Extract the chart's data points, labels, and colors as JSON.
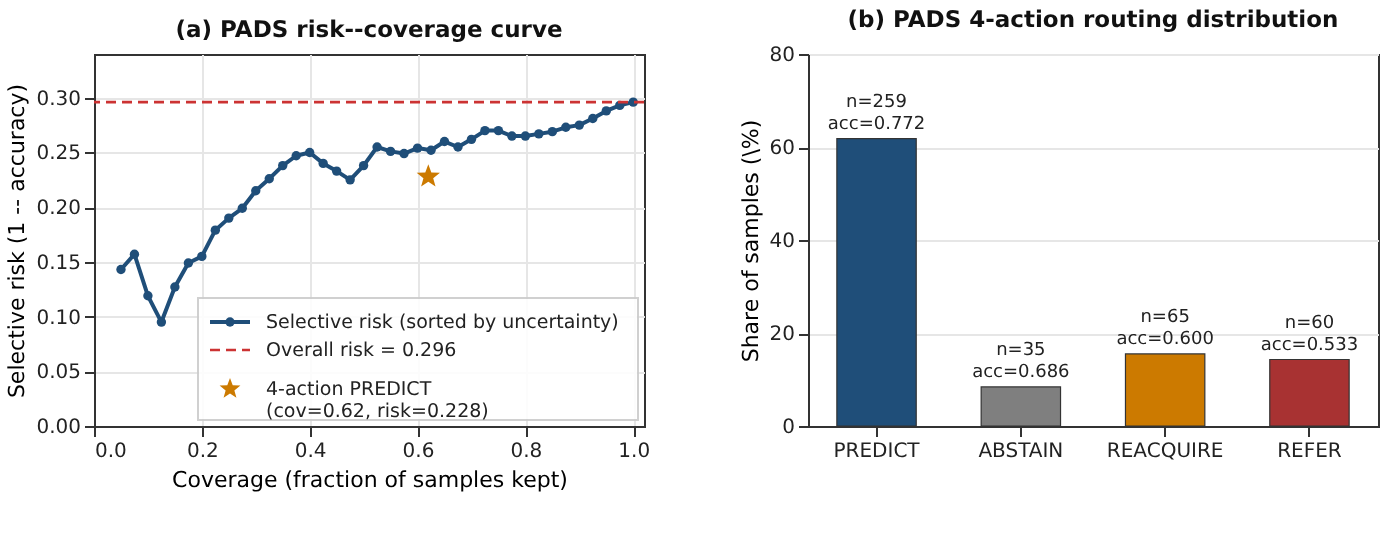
{
  "chart_data": [
    {
      "type": "line",
      "title": "(a) PADS risk--coverage curve",
      "xlabel": "Coverage (fraction of samples kept)",
      "ylabel": "Selective risk (1 -- accuracy)",
      "xlim": [
        0,
        1.02
      ],
      "ylim": [
        0,
        0.34
      ],
      "xticks": [
        {
          "value": 0,
          "label": "0.0"
        },
        0.2,
        0.4,
        0.6,
        0.8,
        {
          "value": 1,
          "label": "1.0"
        }
      ],
      "yticks": [
        {
          "value": 0,
          "label": "0.00"
        },
        0.05,
        {
          "value": 0.1,
          "label": "0.10"
        },
        0.15,
        {
          "value": 0.2,
          "label": "0.20"
        },
        0.25,
        {
          "value": 0.3,
          "label": "0.30"
        }
      ],
      "grid": true,
      "legend": "bottom right",
      "marker": "circle",
      "line_style": "solid",
      "series": [
        {
          "name": "Selective risk (sorted by uncertainty)",
          "type": "line",
          "color": "#1f4e79",
          "x": [
            0.05,
            0.075,
            0.1,
            0.125,
            0.15,
            0.175,
            0.2,
            0.225,
            0.25,
            0.275,
            0.3,
            0.325,
            0.35,
            0.375,
            0.4,
            0.425,
            0.45,
            0.475,
            0.5,
            0.525,
            0.55,
            0.575,
            0.6,
            0.625,
            0.65,
            0.675,
            0.7,
            0.725,
            0.75,
            0.775,
            0.8,
            0.825,
            0.85,
            0.875,
            0.9,
            0.925,
            0.95,
            0.975,
            1.0
          ],
          "values": [
            0.143,
            0.157,
            0.119,
            0.095,
            0.127,
            0.149,
            0.155,
            0.179,
            0.19,
            0.199,
            0.215,
            0.226,
            0.238,
            0.247,
            0.25,
            0.24,
            0.233,
            0.225,
            0.238,
            0.255,
            0.251,
            0.249,
            0.254,
            0.252,
            0.26,
            0.255,
            0.262,
            0.27,
            0.27,
            0.265,
            0.265,
            0.267,
            0.269,
            0.273,
            0.275,
            0.281,
            0.288,
            0.293,
            0.296
          ]
        },
        {
          "name": "4-action PREDICT\n(cov=0.62, risk=0.228)",
          "type": "scatter",
          "marker": "star",
          "color": "#cc7a00",
          "x": [
            0.62
          ],
          "values": [
            0.228
          ]
        }
      ],
      "ref_lines": [
        {
          "axis": "y",
          "value": 0.296,
          "label": "Overall risk = 0.296",
          "color": "#cc3333",
          "line_style": "dashed"
        }
      ]
    },
    {
      "type": "bar",
      "title": "(b) PADS 4-action routing distribution",
      "ylabel": "Share of samples (\\%)",
      "categories": [
        "PREDICT",
        "ABSTAIN",
        "REACQUIRE",
        "REFER"
      ],
      "values": [
        61.8,
        8.4,
        15.5,
        14.3
      ],
      "colors": [
        "#1f4e79",
        "#7f7f7f",
        "#cc7a00",
        "#a83232"
      ],
      "value_labels": [
        "n=259\nacc=0.772",
        "n=35\nacc=0.686",
        "n=65\nacc=0.600",
        "n=60\nacc=0.533"
      ],
      "ylim": [
        0,
        80
      ],
      "yticks": [
        0,
        20,
        40,
        60,
        80
      ],
      "grid": "y",
      "legend": false
    }
  ]
}
